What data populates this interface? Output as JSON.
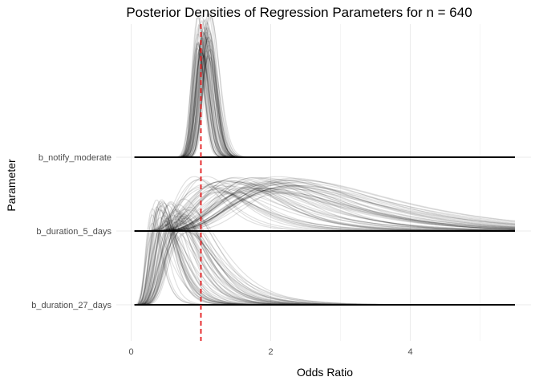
{
  "chart_data": {
    "type": "ridgeline-density",
    "title": "Posterior Densities of Regression Parameters for n = 640",
    "xlabel": "Odds Ratio",
    "ylabel": "Parameter",
    "xlim": [
      0,
      5.7
    ],
    "x_ticks": [
      0,
      2,
      4
    ],
    "x_minor_ticks": [
      1,
      3,
      5
    ],
    "grid": true,
    "reference_line": {
      "x": 1,
      "color": "#e41a1c",
      "style": "dashed"
    },
    "draws_per_parameter": 60,
    "line_color": "#000000",
    "line_opacity": 0.12,
    "categories": [
      "b_duration_27_days",
      "b_duration_5_days",
      "b_notify_moderate"
    ],
    "series": [
      {
        "name": "b_duration_27_days",
        "peak_x_range": [
          0.3,
          0.85
        ],
        "x_range": [
          0.05,
          5.5
        ],
        "shape": "right-skewed"
      },
      {
        "name": "b_duration_5_days",
        "peak_x_range": [
          0.9,
          2.4
        ],
        "x_range": [
          0.05,
          5.5
        ],
        "shape": "right-skewed"
      },
      {
        "name": "b_notify_moderate",
        "peak_x_range": [
          0.95,
          1.15
        ],
        "x_range": [
          0.05,
          5.5
        ],
        "shape": "narrow"
      }
    ]
  }
}
